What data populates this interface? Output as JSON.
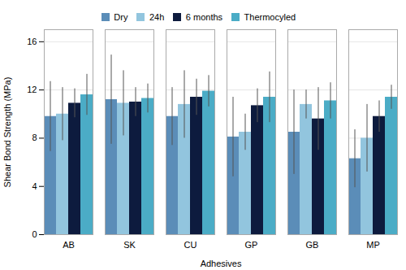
{
  "chart_data": {
    "type": "bar",
    "categories": [
      "AB",
      "SK",
      "CU",
      "GP",
      "GB",
      "MP"
    ],
    "series": [
      {
        "name": "Dry",
        "color": "#5b8db8",
        "values": [
          9.8,
          11.2,
          9.8,
          8.1,
          8.5,
          6.3
        ],
        "errors": [
          2.9,
          3.7,
          2.4,
          3.3,
          3.5,
          2.4
        ]
      },
      {
        "name": "24h",
        "color": "#92c5de",
        "values": [
          10.0,
          10.9,
          10.8,
          8.5,
          10.8,
          8.0
        ],
        "errors": [
          2.2,
          2.7,
          2.8,
          1.5,
          1.2,
          2.8
        ]
      },
      {
        "name": "6 months",
        "color": "#0d1b3e",
        "values": [
          10.9,
          11.0,
          11.4,
          10.7,
          9.6,
          9.8
        ],
        "errors": [
          1.2,
          1.2,
          1.5,
          1.4,
          2.6,
          1.3
        ]
      },
      {
        "name": "Thermocyled",
        "color": "#4bacc6",
        "values": [
          11.6,
          11.3,
          11.9,
          11.4,
          11.1,
          11.4
        ],
        "errors": [
          1.7,
          1.2,
          1.3,
          2.1,
          1.5,
          1.0
        ]
      }
    ],
    "xlabel": "Adhesives",
    "ylabel": "Shear Bond Strength (MPa)",
    "ylim": [
      0,
      17
    ],
    "yticks": [
      0,
      4,
      8,
      12,
      16
    ],
    "grid": true,
    "legend": "top"
  }
}
